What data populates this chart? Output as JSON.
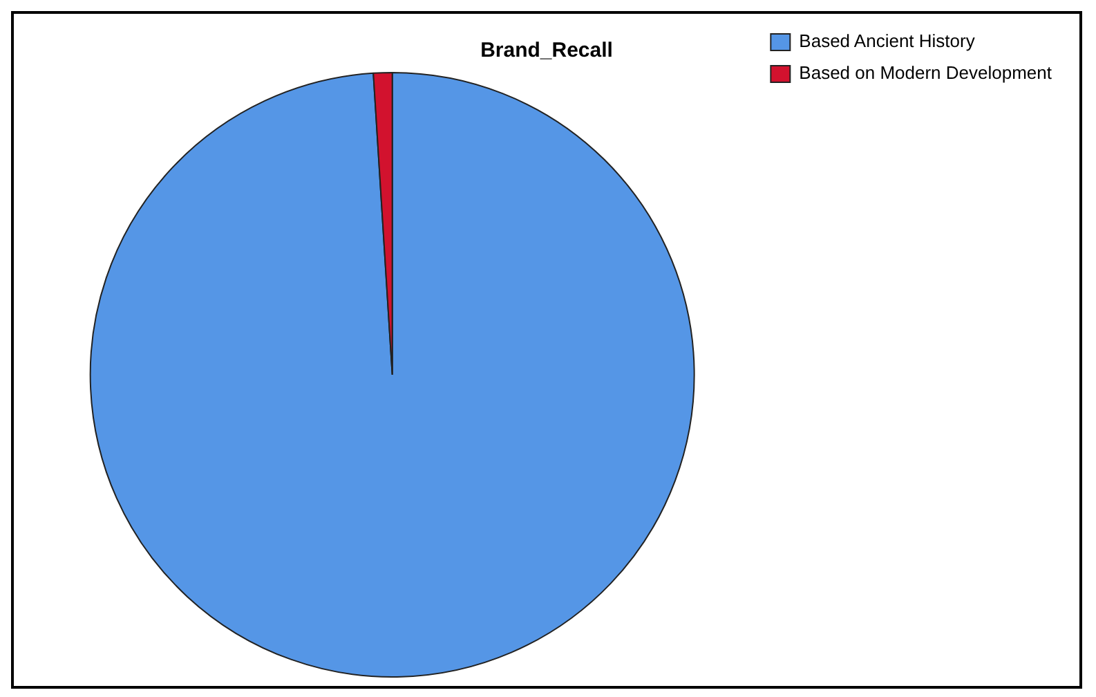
{
  "chart_data": {
    "type": "pie",
    "title": "Brand_Recall",
    "categories": [
      "Based Ancient History",
      "Based on Modern Development"
    ],
    "values": [
      99,
      1
    ],
    "colors": [
      "#5596e6",
      "#d2122e"
    ],
    "legend": "top right"
  }
}
